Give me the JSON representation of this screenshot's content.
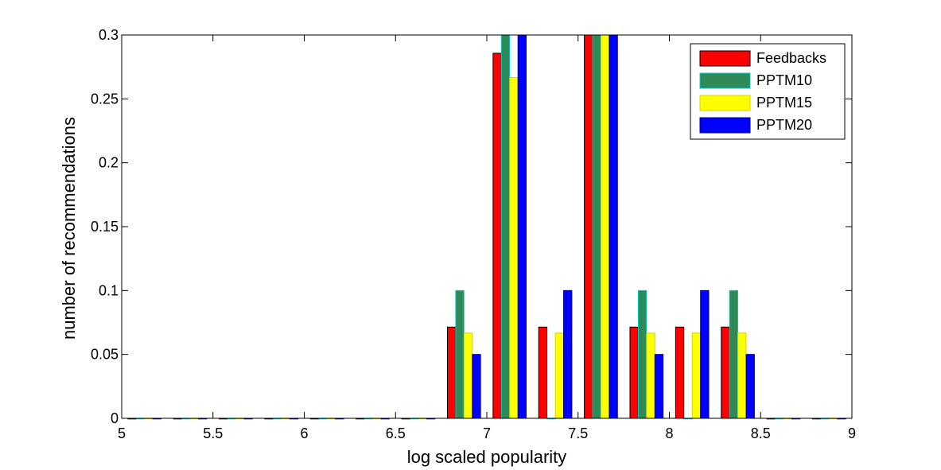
{
  "chart_data": {
    "type": "bar",
    "title": "",
    "xlabel": "log scaled popularity",
    "ylabel": "number of recommendations",
    "xlim": [
      5,
      9
    ],
    "ylim": [
      0,
      0.3
    ],
    "xticks": [
      "5",
      "5.5",
      "6",
      "6.5",
      "7",
      "7.5",
      "8",
      "8.5",
      "9"
    ],
    "yticks": [
      "0",
      "0.05",
      "0.1",
      "0.15",
      "0.2",
      "0.25",
      "0.3"
    ],
    "grid": false,
    "legend_position": "top-right",
    "x": [
      5.125,
      5.375,
      5.625,
      5.875,
      6.125,
      6.375,
      6.625,
      6.875,
      7.125,
      7.375,
      7.625,
      7.875,
      8.125,
      8.375,
      8.625,
      8.875
    ],
    "series": [
      {
        "name": "Feedbacks",
        "color": "#ff0000",
        "edge": "#000000",
        "values": [
          0,
          0,
          0,
          0,
          0,
          0,
          0,
          0.0714,
          0.2857,
          0.0714,
          0.3,
          0.0714,
          0.0714,
          0.0714,
          0,
          0
        ]
      },
      {
        "name": "PPTM10",
        "color": "#2e8b57",
        "edge": "#00c8c8",
        "values": [
          0,
          0,
          0,
          0,
          0,
          0,
          0,
          0.1,
          0.3,
          0,
          0.3,
          0.1,
          0,
          0.1,
          0,
          0
        ]
      },
      {
        "name": "PPTM15",
        "color": "#ffff00",
        "edge": "#d4d400",
        "values": [
          0,
          0,
          0,
          0,
          0,
          0,
          0,
          0.0667,
          0.2667,
          0.0667,
          0.3,
          0.0667,
          0.0667,
          0.0667,
          0,
          0
        ]
      },
      {
        "name": "PPTM20",
        "color": "#0000ff",
        "edge": "#000080",
        "values": [
          0,
          0,
          0,
          0,
          0,
          0,
          0,
          0.05,
          0.3,
          0.1,
          0.3,
          0.05,
          0.1,
          0.05,
          0,
          0
        ]
      }
    ]
  }
}
